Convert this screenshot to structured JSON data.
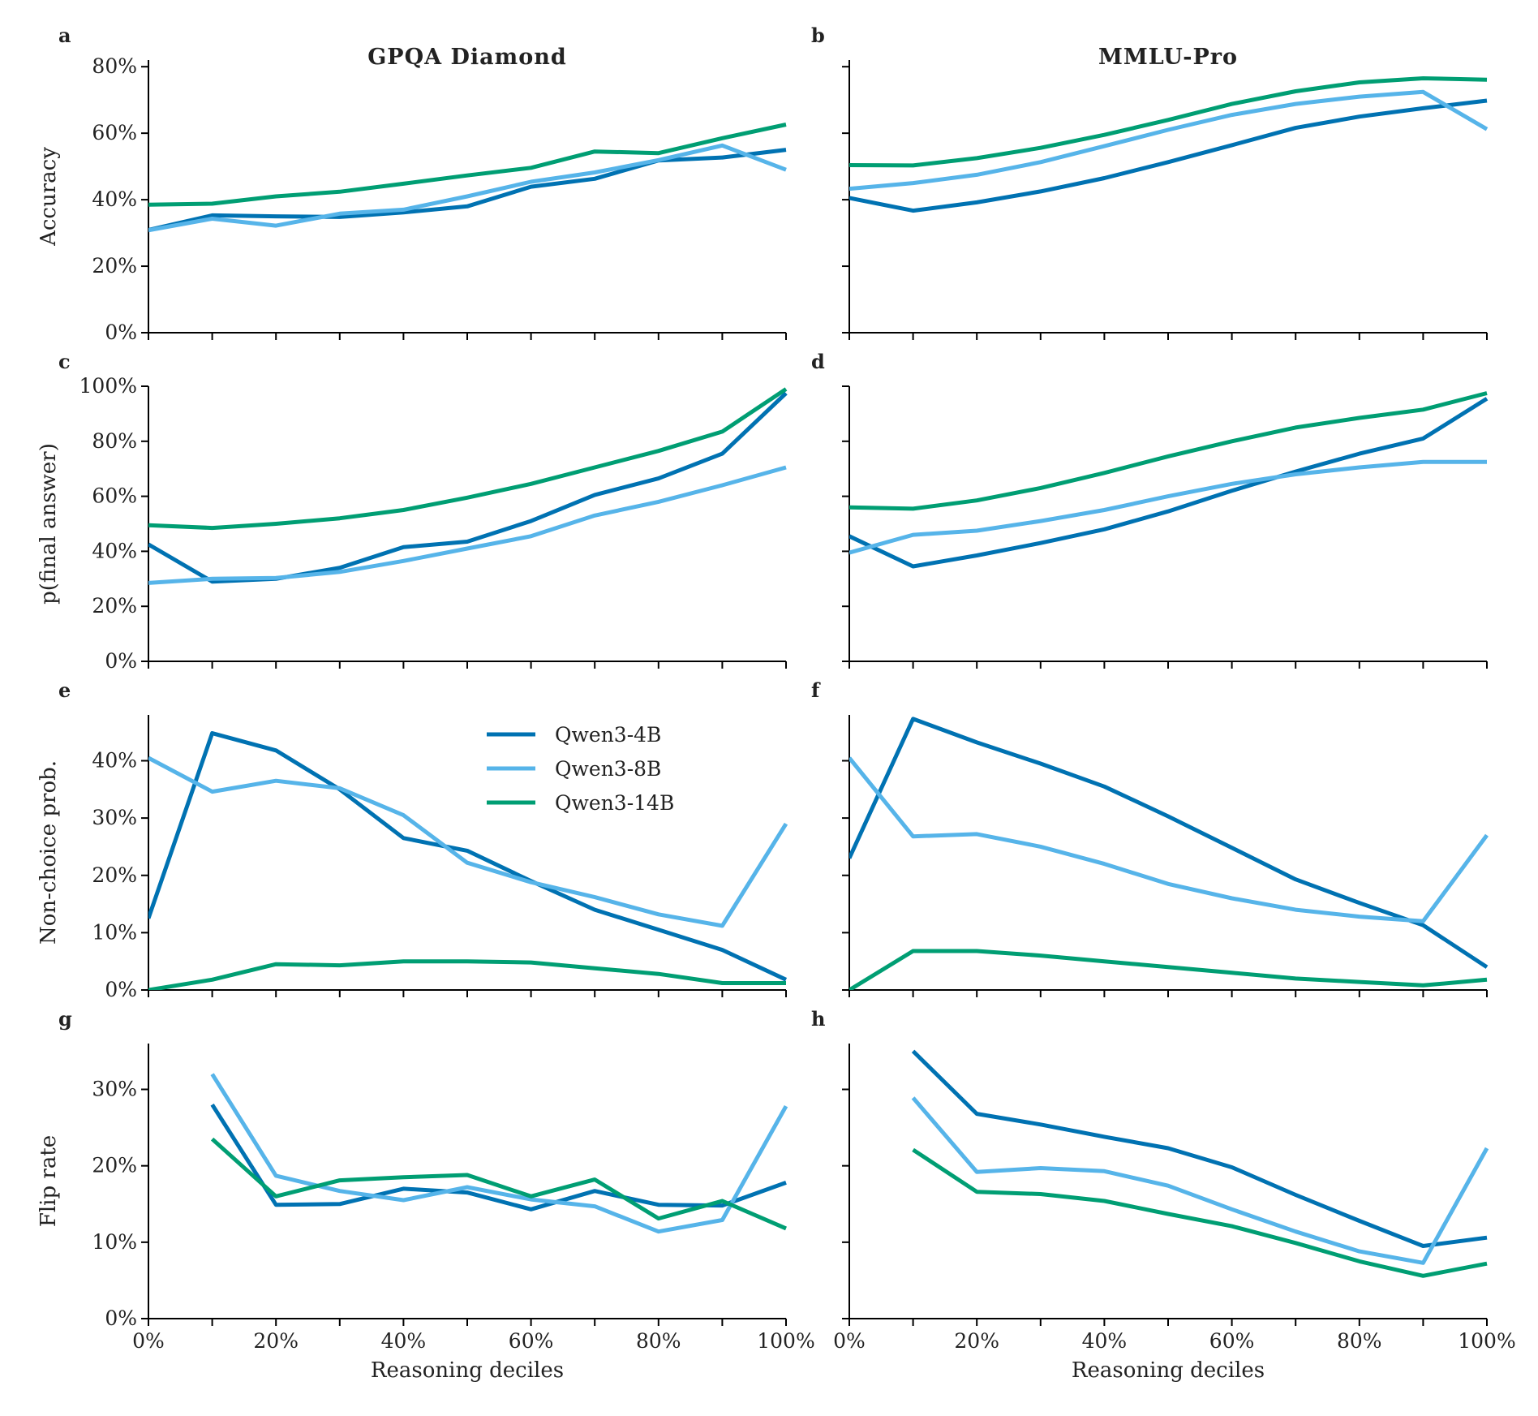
{
  "chart_data": {
    "type": "line",
    "layout": "4x2 grid",
    "x": [
      0,
      10,
      20,
      30,
      40,
      50,
      60,
      70,
      80,
      90,
      100
    ],
    "x_tick_labels": [
      "0%",
      "20%",
      "40%",
      "60%",
      "80%",
      "100%"
    ],
    "x_tick_values": [
      0,
      20,
      40,
      60,
      80,
      100
    ],
    "xlabel": "Reasoning deciles",
    "columns": [
      {
        "title": "GPQA Diamond"
      },
      {
        "title": "MMLU-Pro"
      }
    ],
    "legend": {
      "placement": "upper-center of panel e",
      "entries": [
        {
          "label": "Qwen3-4B",
          "color": "#0072B2"
        },
        {
          "label": "Qwen3-8B",
          "color": "#56B4E9"
        },
        {
          "label": "Qwen3-14B",
          "color": "#009E73"
        }
      ]
    },
    "rows": [
      {
        "ylabel": "Accuracy",
        "ylim": [
          0,
          82
        ],
        "y_ticks": [
          0,
          20,
          40,
          60,
          80
        ],
        "y_tick_labels": [
          "0%",
          "20%",
          "40%",
          "60%",
          "80%"
        ]
      },
      {
        "ylabel": "p(final answer)",
        "ylim": [
          0,
          100
        ],
        "y_ticks": [
          0,
          20,
          40,
          60,
          80,
          100
        ],
        "y_tick_labels": [
          "0%",
          "20%",
          "40%",
          "60%",
          "80%",
          "100%"
        ]
      },
      {
        "ylabel": "Non-choice prob.",
        "ylim": [
          0,
          48
        ],
        "y_ticks": [
          0,
          10,
          20,
          30,
          40
        ],
        "y_tick_labels": [
          "0%",
          "10%",
          "20%",
          "30%",
          "40%"
        ]
      },
      {
        "ylabel": "Flip rate",
        "ylim": [
          0,
          36
        ],
        "y_ticks": [
          0,
          10,
          20,
          30
        ],
        "y_tick_labels": [
          "0%",
          "10%",
          "20%",
          "30%"
        ]
      }
    ],
    "panels": [
      {
        "letter": "a",
        "row": 0,
        "col": 0,
        "series": [
          {
            "name": "Qwen3-4B",
            "values": [
              30.9,
              35.3,
              35.0,
              34.8,
              36.2,
              38.0,
              43.9,
              46.3,
              51.8,
              52.7,
              55.0
            ]
          },
          {
            "name": "Qwen3-8B",
            "values": [
              30.8,
              34.3,
              32.2,
              35.8,
              37.0,
              41.0,
              45.4,
              48.2,
              51.9,
              56.3,
              49.0
            ]
          },
          {
            "name": "Qwen3-14B",
            "values": [
              38.5,
              38.8,
              41.0,
              42.4,
              44.8,
              47.3,
              49.6,
              54.5,
              54.0,
              58.5,
              62.6
            ]
          }
        ]
      },
      {
        "letter": "b",
        "row": 0,
        "col": 1,
        "series": [
          {
            "name": "Qwen3-4B",
            "values": [
              40.5,
              36.7,
              39.2,
              42.5,
              46.5,
              51.3,
              56.4,
              61.6,
              65.0,
              67.5,
              69.8
            ]
          },
          {
            "name": "Qwen3-8B",
            "values": [
              43.3,
              45.0,
              47.5,
              51.3,
              56.1,
              61.0,
              65.5,
              68.8,
              71.0,
              72.4,
              61.2
            ]
          },
          {
            "name": "Qwen3-14B",
            "values": [
              50.4,
              50.3,
              52.5,
              55.6,
              59.5,
              64.0,
              68.8,
              72.6,
              75.3,
              76.5,
              76.1
            ]
          }
        ]
      },
      {
        "letter": "c",
        "row": 1,
        "col": 0,
        "series": [
          {
            "name": "Qwen3-4B",
            "values": [
              42.5,
              29.0,
              30.0,
              34.0,
              41.5,
              43.5,
              51.0,
              60.5,
              66.5,
              75.5,
              97.5
            ]
          },
          {
            "name": "Qwen3-8B",
            "values": [
              28.5,
              30.0,
              30.3,
              32.5,
              36.5,
              41.0,
              45.5,
              53.0,
              58.0,
              64.0,
              70.5
            ]
          },
          {
            "name": "Qwen3-14B",
            "values": [
              49.5,
              48.5,
              50.0,
              52.0,
              55.0,
              59.5,
              64.5,
              70.5,
              76.5,
              83.5,
              99.0
            ]
          }
        ]
      },
      {
        "letter": "d",
        "row": 1,
        "col": 1,
        "series": [
          {
            "name": "Qwen3-4B",
            "values": [
              45.5,
              34.5,
              38.5,
              43.0,
              48.0,
              54.5,
              62.0,
              69.0,
              75.5,
              81.0,
              95.5
            ]
          },
          {
            "name": "Qwen3-8B",
            "values": [
              39.5,
              46.0,
              47.5,
              51.0,
              55.0,
              60.0,
              64.5,
              68.0,
              70.5,
              72.5,
              72.5
            ]
          },
          {
            "name": "Qwen3-14B",
            "values": [
              56.0,
              55.5,
              58.5,
              63.0,
              68.5,
              74.5,
              80.0,
              85.0,
              88.5,
              91.5,
              97.5
            ]
          }
        ]
      },
      {
        "letter": "e",
        "row": 2,
        "col": 0,
        "series": [
          {
            "name": "Qwen3-4B",
            "values": [
              12.5,
              44.8,
              41.8,
              35.0,
              26.5,
              24.3,
              19.0,
              14.0,
              10.5,
              7.0,
              1.8
            ]
          },
          {
            "name": "Qwen3-8B",
            "values": [
              40.5,
              34.6,
              36.5,
              35.2,
              30.5,
              22.2,
              18.8,
              16.2,
              13.2,
              11.2,
              29.0
            ]
          },
          {
            "name": "Qwen3-14B",
            "values": [
              0.0,
              1.8,
              4.5,
              4.3,
              5.0,
              5.0,
              4.8,
              3.8,
              2.8,
              1.2,
              1.2
            ]
          }
        ]
      },
      {
        "letter": "f",
        "row": 2,
        "col": 1,
        "series": [
          {
            "name": "Qwen3-4B",
            "values": [
              23.0,
              47.3,
              43.2,
              39.5,
              35.5,
              30.3,
              24.8,
              19.3,
              15.2,
              11.3,
              4.0
            ]
          },
          {
            "name": "Qwen3-8B",
            "values": [
              40.5,
              26.8,
              27.2,
              25.0,
              22.0,
              18.5,
              16.0,
              14.0,
              12.8,
              12.0,
              27.0
            ]
          },
          {
            "name": "Qwen3-14B",
            "values": [
              0.0,
              6.8,
              6.8,
              6.0,
              5.0,
              4.0,
              3.0,
              2.0,
              1.4,
              0.8,
              1.8
            ]
          }
        ]
      },
      {
        "letter": "g",
        "row": 3,
        "col": 0,
        "series": [
          {
            "name": "Qwen3-4B",
            "values": [
              null,
              28.0,
              14.9,
              15.0,
              17.0,
              16.5,
              14.3,
              16.7,
              14.9,
              14.8,
              17.8
            ]
          },
          {
            "name": "Qwen3-8B",
            "values": [
              null,
              32.0,
              18.7,
              16.7,
              15.5,
              17.2,
              15.6,
              14.7,
              11.4,
              12.9,
              27.8
            ]
          },
          {
            "name": "Qwen3-14B",
            "values": [
              null,
              23.5,
              16.0,
              18.1,
              18.5,
              18.8,
              16.0,
              18.2,
              13.1,
              15.4,
              11.8
            ]
          }
        ]
      },
      {
        "letter": "h",
        "row": 3,
        "col": 1,
        "series": [
          {
            "name": "Qwen3-4B",
            "values": [
              null,
              35.0,
              26.8,
              25.4,
              23.8,
              22.3,
              19.8,
              16.2,
              12.8,
              9.5,
              10.6
            ]
          },
          {
            "name": "Qwen3-8B",
            "values": [
              null,
              28.9,
              19.2,
              19.7,
              19.3,
              17.4,
              14.3,
              11.4,
              8.8,
              7.3,
              22.3
            ]
          },
          {
            "name": "Qwen3-14B",
            "values": [
              null,
              22.1,
              16.6,
              16.3,
              15.4,
              13.7,
              12.1,
              9.9,
              7.5,
              5.6,
              7.2
            ]
          }
        ]
      }
    ]
  }
}
